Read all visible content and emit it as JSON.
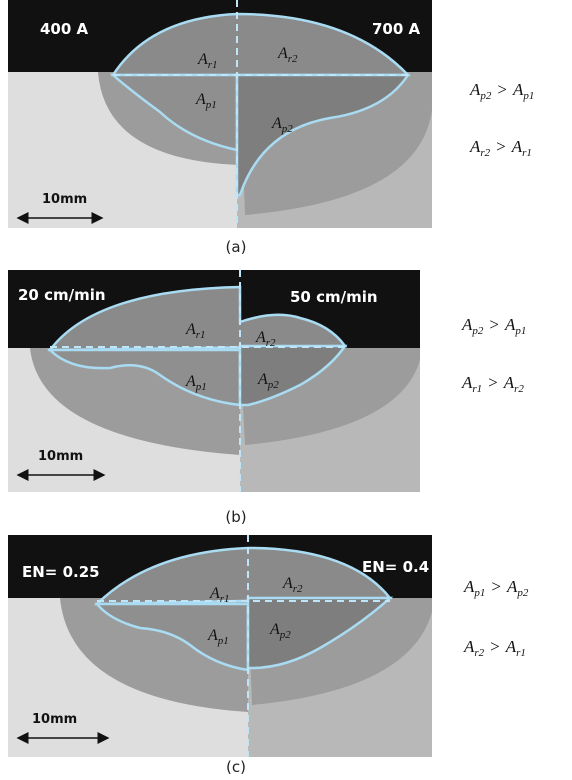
{
  "panels": [
    {
      "left_label": "400 A",
      "right_label": "700 A",
      "regions": [
        {
          "main": "A",
          "sub": "r1"
        },
        {
          "main": "A",
          "sub": "r2"
        },
        {
          "main": "A",
          "sub": "p1"
        },
        {
          "main": "A",
          "sub": "p2"
        }
      ],
      "scale": "10mm",
      "caption": "(a)",
      "relations": [
        {
          "lhs": "A",
          "lhs_sub": "p2",
          "op": ">",
          "rhs": "A",
          "rhs_sub": "p1"
        },
        {
          "lhs": "A",
          "lhs_sub": "r2",
          "op": ">",
          "rhs": "A",
          "rhs_sub": "r1"
        }
      ]
    },
    {
      "left_label": "20 cm/min",
      "right_label": "50 cm/min",
      "regions": [
        {
          "main": "A",
          "sub": "r1"
        },
        {
          "main": "A",
          "sub": "r2"
        },
        {
          "main": "A",
          "sub": "p1"
        },
        {
          "main": "A",
          "sub": "p2"
        }
      ],
      "scale": "10mm",
      "caption": "(b)",
      "relations": [
        {
          "lhs": "A",
          "lhs_sub": "p2",
          "op": ">",
          "rhs": "A",
          "rhs_sub": "p1"
        },
        {
          "lhs": "A",
          "lhs_sub": "r1",
          "op": ">",
          "rhs": "A",
          "rhs_sub": "r2"
        }
      ]
    },
    {
      "left_label": "EN= 0.25",
      "right_label": "EN= 0.4",
      "regions": [
        {
          "main": "A",
          "sub": "r1"
        },
        {
          "main": "A",
          "sub": "r2"
        },
        {
          "main": "A",
          "sub": "p1"
        },
        {
          "main": "A",
          "sub": "p2"
        }
      ],
      "scale": "10mm",
      "caption": "(c)",
      "relations": [
        {
          "lhs": "A",
          "lhs_sub": "p1",
          "op": ">",
          "rhs": "A",
          "rhs_sub": "p2"
        },
        {
          "lhs": "A",
          "lhs_sub": "r2",
          "op": ">",
          "rhs": "A",
          "rhs_sub": "r1"
        }
      ]
    }
  ]
}
